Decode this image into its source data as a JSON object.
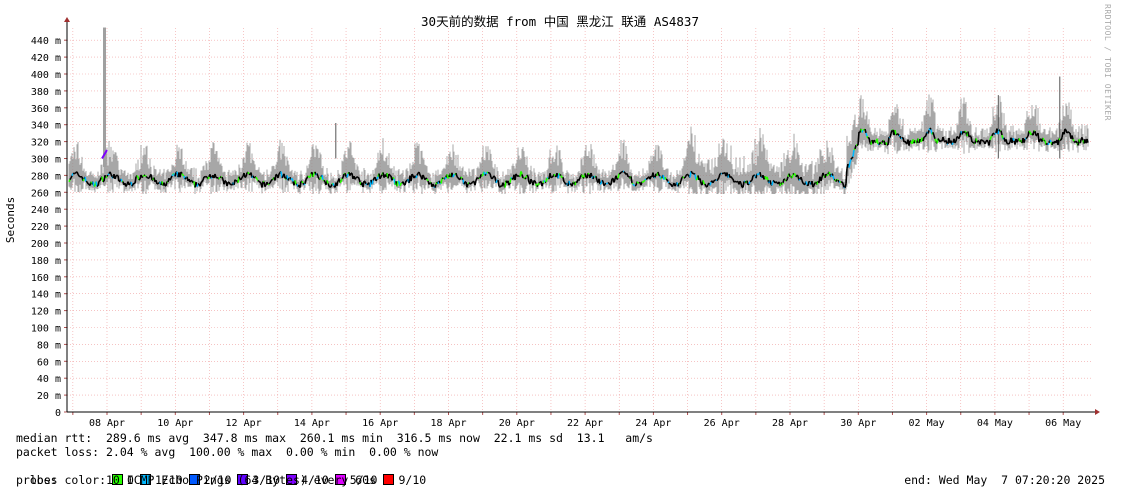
{
  "chart_data": {
    "type": "line",
    "title": "30天前的数据 from 中国 黑龙江 联通 AS4837",
    "ylabel": "Seconds",
    "ylim": [
      0,
      0.455
    ],
    "y_ticks": [
      "0",
      "20 m",
      "40 m",
      "60 m",
      "80 m",
      "100 m",
      "120 m",
      "140 m",
      "160 m",
      "180 m",
      "200 m",
      "220 m",
      "240 m",
      "260 m",
      "280 m",
      "300 m",
      "320 m",
      "340 m",
      "360 m",
      "380 m",
      "400 m",
      "420 m",
      "440 m"
    ],
    "x_ticks": [
      "08 Apr",
      "10 Apr",
      "12 Apr",
      "14 Apr",
      "16 Apr",
      "18 Apr",
      "20 Apr",
      "22 Apr",
      "24 Apr",
      "26 Apr",
      "28 Apr",
      "30 Apr",
      "02 May",
      "04 May",
      "06 May"
    ],
    "grid": true,
    "series": [
      {
        "name": "median rtt",
        "unit": "ms",
        "baseline_before_30apr": [
          270,
          290
        ],
        "baseline_after_30apr": [
          310,
          345
        ]
      }
    ],
    "spike": {
      "x": "07 Apr",
      "value": 0.455
    }
  },
  "stats": {
    "median_line": "median rtt:  289.6 ms avg  347.8 ms max  260.1 ms min  316.5 ms now  22.1 ms sd  13.1   am/s",
    "loss_line": "packet loss: 2.04 % avg  100.00 % max  0.00 % min  0.00 % now",
    "legend_label": "loss color:",
    "probe_line": "probe:       10 ICMP Echo Pings (64 Bytes) every 60s",
    "end_line": "end: Wed May  7 07:20:20 2025"
  },
  "loss_colors": [
    {
      "label": "0",
      "color": "#26ff00"
    },
    {
      "label": "1/10",
      "color": "#00b8ff"
    },
    {
      "label": "2/10",
      "color": "#0059ff"
    },
    {
      "label": "3/10",
      "color": "#5e00ff"
    },
    {
      "label": "4/10",
      "color": "#7e00ff"
    },
    {
      "label": "5/10",
      "color": "#dd00ff"
    },
    {
      "label": "9/10",
      "color": "#ff0000"
    }
  ],
  "watermark": "RRDTOOL / TOBI OETIKER"
}
